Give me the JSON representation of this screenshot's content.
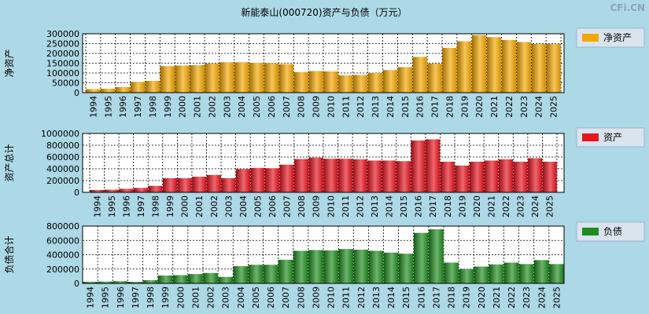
{
  "title": "新能泰山(000720)资产与负债（万元）",
  "watermark": "CFi.CN",
  "colors": {
    "background": "#add8e6",
    "plot": "#ffffff",
    "grid": "#000000",
    "legend_bg": "#d9e4ef"
  },
  "chart_data": [
    {
      "type": "bar",
      "title": "新能泰山(000720)资产与负债（万元）",
      "ylabel": "净资产",
      "legend": "净资产",
      "legend_position": "right",
      "color": "#f5a800",
      "ylim": [
        0,
        300000
      ],
      "yticks": [
        0,
        50000,
        100000,
        150000,
        200000,
        250000,
        300000
      ],
      "ytick_labels": [
        "0",
        "50000",
        "100000",
        "150000",
        "200000",
        "250000",
        "300000"
      ],
      "categories": [
        "1994",
        "1995",
        "1996",
        "1997",
        "1998",
        "1999",
        "2000",
        "2001",
        "2002",
        "2003",
        "2004",
        "2005",
        "2006",
        "2007",
        "2008",
        "2009",
        "2010",
        "2011",
        "2012",
        "2013",
        "2014",
        "2015",
        "2016",
        "2017",
        "2018",
        "2019",
        "2020",
        "2021",
        "2022",
        "2023",
        "2024",
        "2025"
      ],
      "values": [
        18000,
        20000,
        28000,
        55000,
        60000,
        135000,
        138000,
        140000,
        148000,
        155000,
        155000,
        152000,
        150000,
        145000,
        105000,
        110000,
        108000,
        88000,
        90000,
        100000,
        115000,
        130000,
        182000,
        148000,
        228000,
        262000,
        293000,
        283000,
        268000,
        258000,
        248000,
        248000
      ]
    },
    {
      "type": "bar",
      "ylabel": "资产总计",
      "legend": "资产",
      "legend_position": "right",
      "color": "#e8141e",
      "ylim": [
        0,
        1000000
      ],
      "yticks": [
        0,
        200000,
        400000,
        600000,
        800000,
        1000000
      ],
      "ytick_labels": [
        "0",
        "200000",
        "400000",
        "600000",
        "800000",
        "1000000"
      ],
      "categories": [
        "1994",
        "1995",
        "1996",
        "1997",
        "1998",
        "1999",
        "2000",
        "2001",
        "2002",
        "2003",
        "2004",
        "2005",
        "2006",
        "2007",
        "2008",
        "2009",
        "2010",
        "2011",
        "2012",
        "2013",
        "2014",
        "2015",
        "2016",
        "2017",
        "2018",
        "2019",
        "2020",
        "2021",
        "2022",
        "2023",
        "2024",
        "2025"
      ],
      "values": [
        40000,
        45000,
        60000,
        75000,
        110000,
        240000,
        240000,
        265000,
        295000,
        240000,
        395000,
        415000,
        410000,
        470000,
        565000,
        590000,
        570000,
        570000,
        560000,
        540000,
        540000,
        530000,
        880000,
        900000,
        520000,
        455000,
        520000,
        540000,
        560000,
        520000,
        580000,
        520000
      ]
    },
    {
      "type": "bar",
      "ylabel": "负债合计",
      "legend": "负债",
      "legend_position": "right",
      "color": "#1e8c1e",
      "ylim": [
        0,
        800000
      ],
      "yticks": [
        0,
        200000,
        400000,
        600000,
        800000
      ],
      "ytick_labels": [
        "0",
        "200000",
        "400000",
        "600000",
        "800000"
      ],
      "categories": [
        "1994",
        "1995",
        "1996",
        "1997",
        "1998",
        "1999",
        "2000",
        "2001",
        "2002",
        "2003",
        "2004",
        "2005",
        "2006",
        "2007",
        "2008",
        "2009",
        "2010",
        "2011",
        "2012",
        "2013",
        "2014",
        "2015",
        "2016",
        "2017",
        "2018",
        "2019",
        "2020",
        "2021",
        "2022",
        "2023",
        "2024",
        "2025"
      ],
      "values": [
        22000,
        25000,
        30000,
        22000,
        45000,
        110000,
        115000,
        130000,
        145000,
        90000,
        240000,
        260000,
        260000,
        330000,
        455000,
        465000,
        460000,
        480000,
        470000,
        455000,
        430000,
        415000,
        705000,
        755000,
        290000,
        200000,
        235000,
        265000,
        290000,
        270000,
        325000,
        270000
      ]
    }
  ]
}
